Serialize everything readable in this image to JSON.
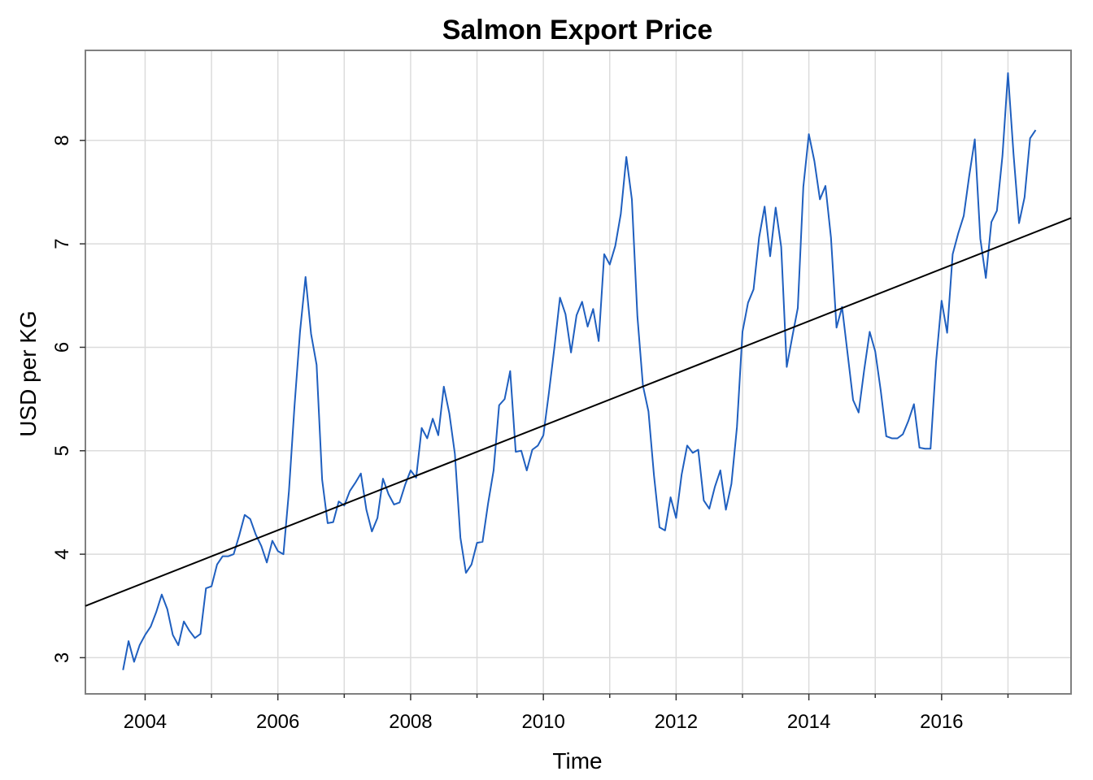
{
  "chart_data": {
    "type": "line",
    "title": "Salmon Export Price",
    "xlabel": "Time",
    "ylabel": "USD per KG",
    "xlim": [
      2003.1,
      2017.95
    ],
    "ylim": [
      2.65,
      8.87
    ],
    "x_ticks": [
      "2004",
      "2006",
      "2008",
      "2010",
      "2012",
      "2014",
      "2016"
    ],
    "y_ticks": [
      "3",
      "4",
      "5",
      "6",
      "7",
      "8"
    ],
    "grid": true,
    "series": [
      {
        "color": "#1f5fbf",
        "start": 2003.667,
        "step": 0.08333,
        "values": [
          2.88,
          3.16,
          2.96,
          3.12,
          3.22,
          3.3,
          3.44,
          3.61,
          3.47,
          3.22,
          3.12,
          3.35,
          3.26,
          3.19,
          3.23,
          3.67,
          3.69,
          3.9,
          3.98,
          3.98,
          4.0,
          4.18,
          4.38,
          4.34,
          4.19,
          4.08,
          3.92,
          4.13,
          4.03,
          4.0,
          4.61,
          5.43,
          6.15,
          6.68,
          6.13,
          5.83,
          4.72,
          4.3,
          4.31,
          4.51,
          4.47,
          4.61,
          4.69,
          4.78,
          4.43,
          4.22,
          4.35,
          4.73,
          4.58,
          4.48,
          4.5,
          4.67,
          4.81,
          4.74,
          5.22,
          5.12,
          5.31,
          5.15,
          5.62,
          5.36,
          4.97,
          4.16,
          3.82,
          3.9,
          4.11,
          4.12,
          4.49,
          4.81,
          5.44,
          5.5,
          5.77,
          4.99,
          5.0,
          4.81,
          5.01,
          5.05,
          5.15,
          5.56,
          6.0,
          6.48,
          6.32,
          5.95,
          6.31,
          6.44,
          6.2,
          6.37,
          6.06,
          6.9,
          6.8,
          6.98,
          7.29,
          7.84,
          7.43,
          6.3,
          5.63,
          5.38,
          4.76,
          4.26,
          4.23,
          4.55,
          4.35,
          4.77,
          5.05,
          4.98,
          5.01,
          4.52,
          4.44,
          4.65,
          4.81,
          4.43,
          4.68,
          5.23,
          6.15,
          6.43,
          6.56,
          7.06,
          7.36,
          6.88,
          7.35,
          6.97,
          5.81,
          6.1,
          6.38,
          7.55,
          8.06,
          7.8,
          7.43,
          7.56,
          7.06,
          6.19,
          6.39,
          5.94,
          5.49,
          5.37,
          5.78,
          6.15,
          5.96,
          5.58,
          5.14,
          5.12,
          5.12,
          5.16,
          5.29,
          5.45,
          5.03,
          5.02,
          5.02,
          5.86,
          6.45,
          6.14,
          6.9,
          7.1,
          7.27,
          7.66,
          8.01,
          7.05,
          6.67,
          7.21,
          7.32,
          7.85,
          8.65,
          7.87,
          7.2,
          7.45,
          8.02,
          8.1
        ]
      }
    ],
    "trend_line": {
      "color": "#000000",
      "x": [
        2003.1,
        2017.95
      ],
      "y": [
        3.5,
        7.25
      ]
    }
  }
}
